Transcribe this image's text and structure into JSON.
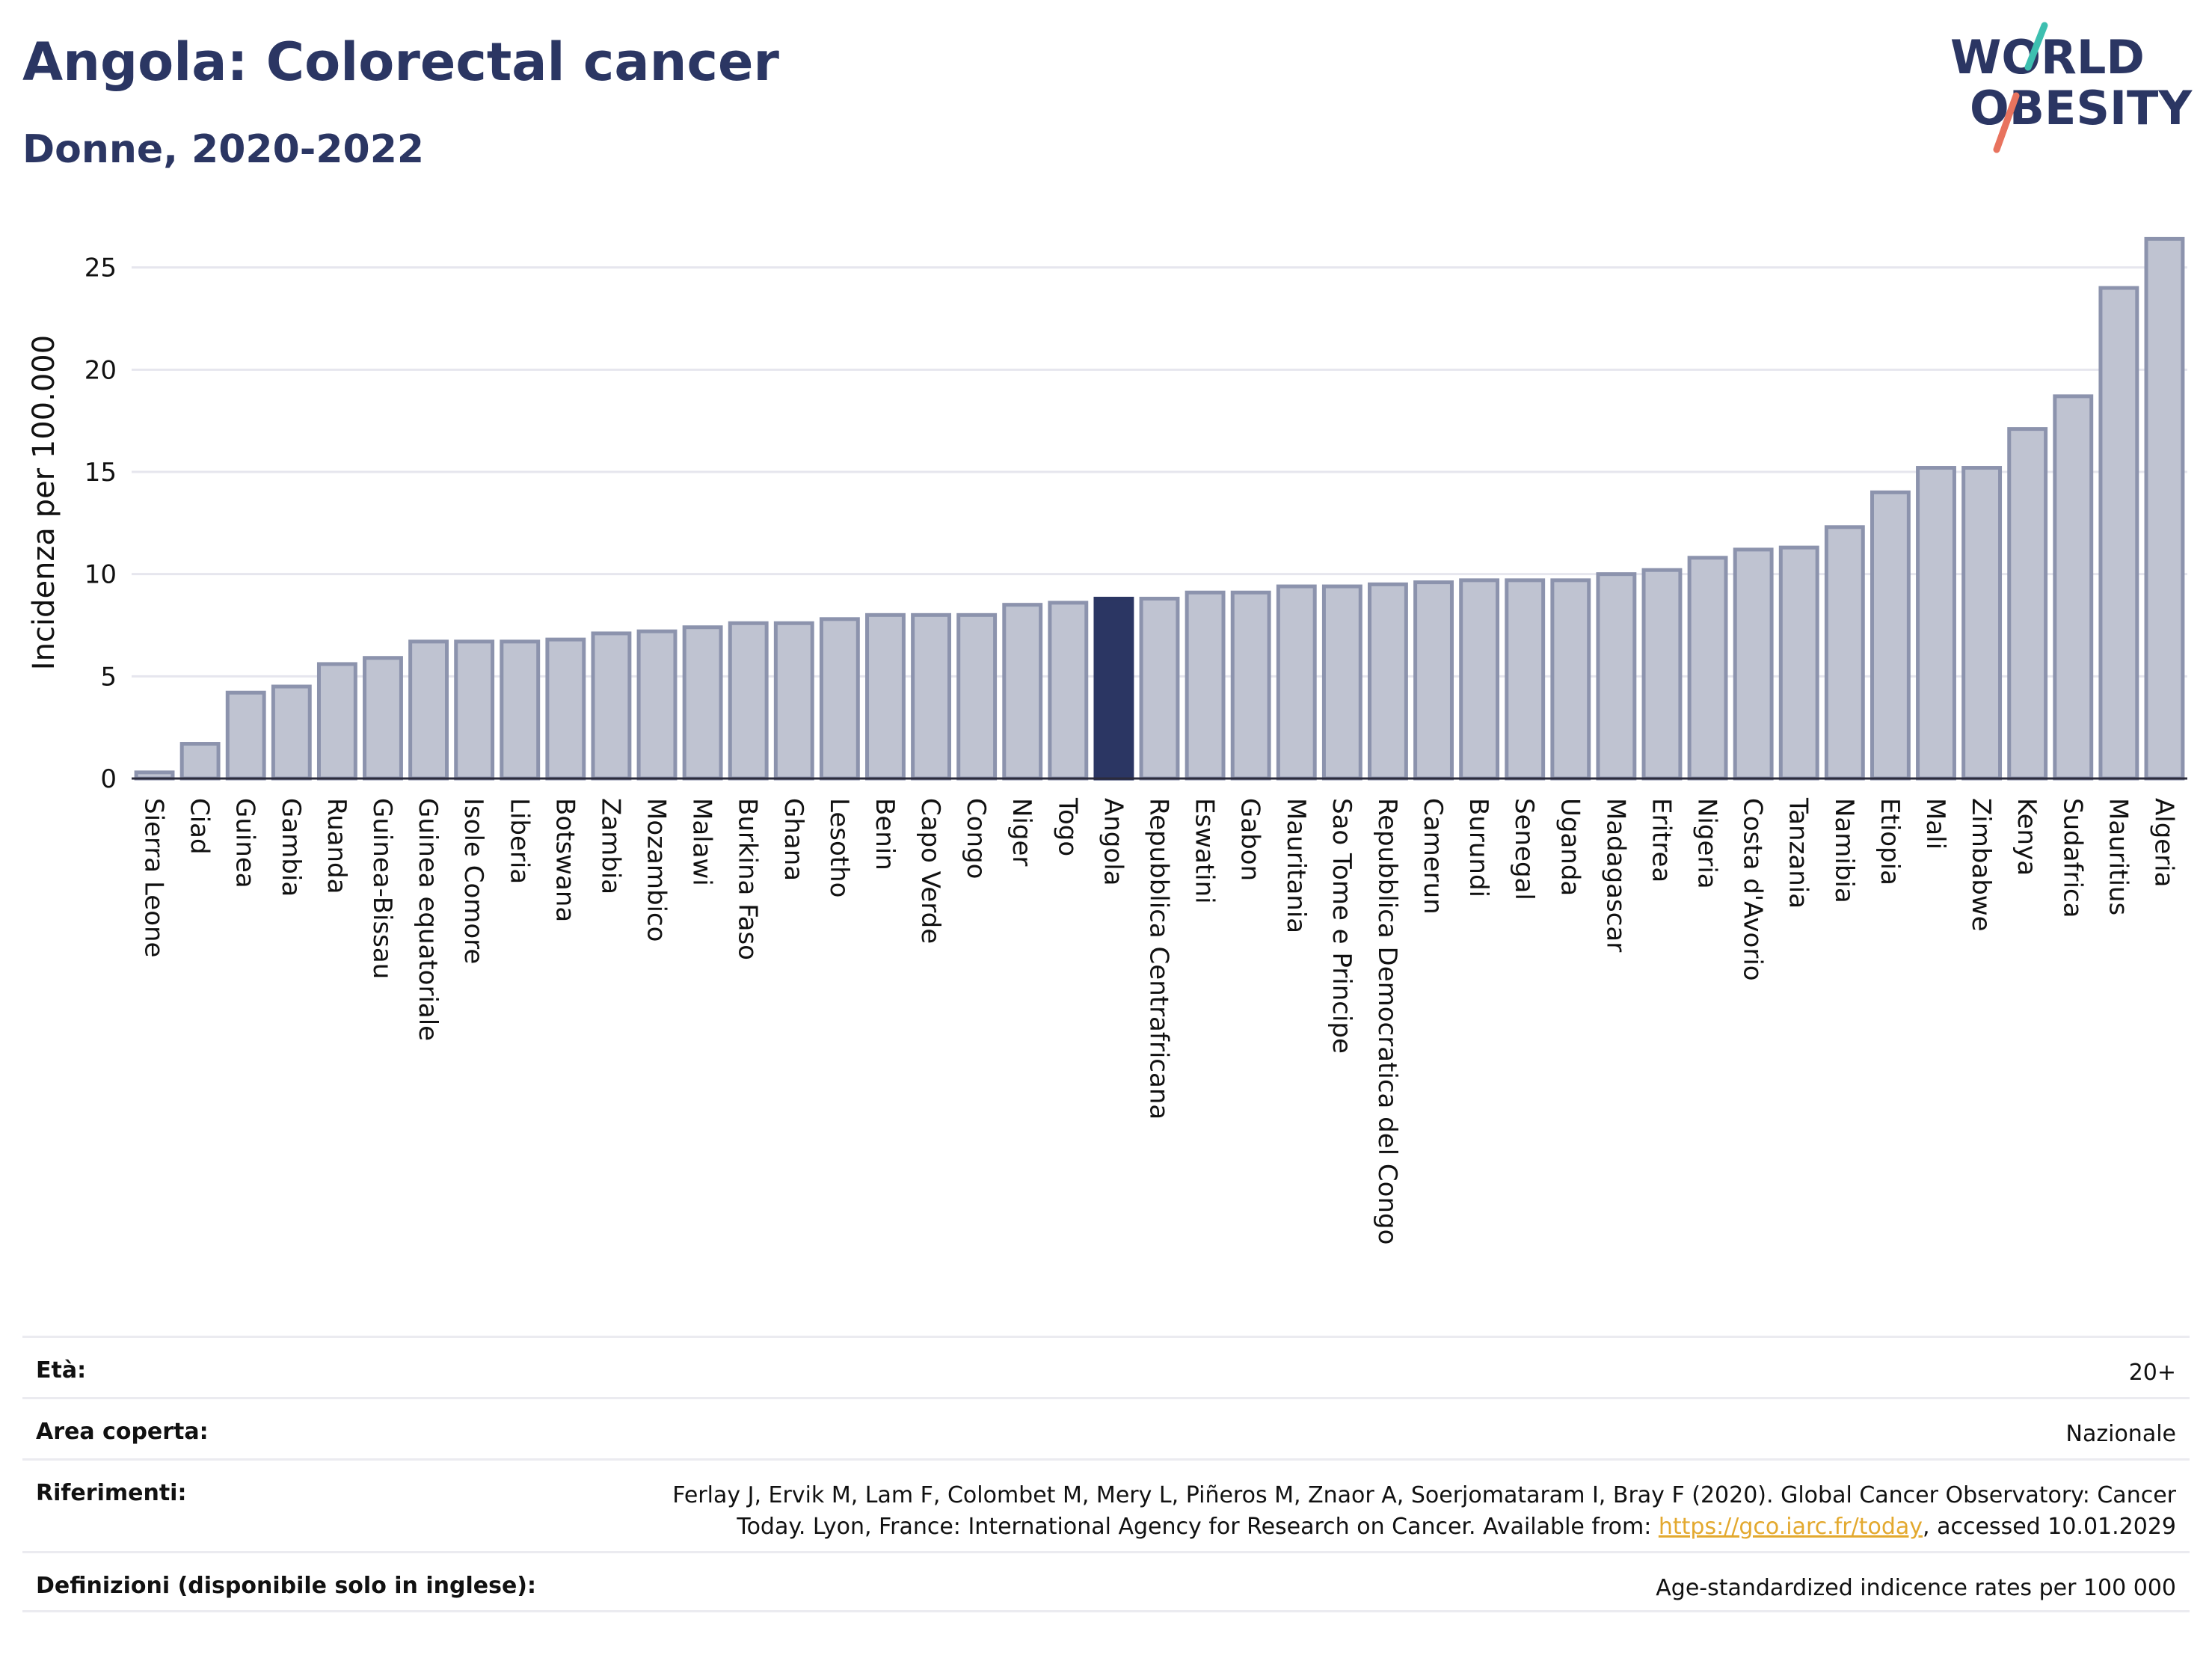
{
  "header": {
    "title": "Angola: Colorectal cancer",
    "subtitle": "Donne, 2020-2022"
  },
  "logo": {
    "line1": "WORLD",
    "line2": "OBESITY"
  },
  "colors": {
    "bar_fill": "#bfc3d1",
    "bar_stroke": "#8c93ad",
    "highlight": "#2b3663",
    "grid": "#e6e6ee",
    "accent_teal": "#3dbfb0",
    "accent_coral": "#e8735e",
    "link": "#e3a92f"
  },
  "chart_data": {
    "type": "bar",
    "ylabel": "Incidenza per 100.000",
    "ylim": [
      0,
      27
    ],
    "yticks": [
      0,
      5,
      10,
      15,
      20,
      25
    ],
    "grid": true,
    "highlight": "Angola",
    "categories": [
      "Sierra Leone",
      "Ciad",
      "Guinea",
      "Gambia",
      "Ruanda",
      "Guinea-Bissau",
      "Guinea equatoriale",
      "Isole Comore",
      "Liberia",
      "Botswana",
      "Zambia",
      "Mozambico",
      "Malawi",
      "Burkina Faso",
      "Ghana",
      "Lesotho",
      "Benin",
      "Capo Verde",
      "Congo",
      "Niger",
      "Togo",
      "Angola",
      "Repubblica Centrafricana",
      "Eswatini",
      "Gabon",
      "Mauritania",
      "Sao Tome e Principe",
      "Repubblica Democratica del Congo",
      "Camerun",
      "Burundi",
      "Senegal",
      "Uganda",
      "Madagascar",
      "Eritrea",
      "Nigeria",
      "Costa d'Avorio",
      "Tanzania",
      "Namibia",
      "Etiopia",
      "Mali",
      "Zimbabwe",
      "Kenya",
      "Sudafrica",
      "Mauritius",
      "Algeria"
    ],
    "values": [
      0.3,
      1.7,
      4.2,
      4.5,
      5.6,
      5.9,
      6.7,
      6.7,
      6.7,
      6.8,
      7.1,
      7.2,
      7.4,
      7.6,
      7.6,
      7.8,
      8.0,
      8.0,
      8.0,
      8.5,
      8.6,
      8.8,
      8.8,
      9.1,
      9.1,
      9.4,
      9.4,
      9.5,
      9.6,
      9.7,
      9.7,
      9.7,
      10.0,
      10.2,
      10.8,
      11.2,
      11.3,
      12.3,
      14.0,
      15.2,
      15.2,
      17.1,
      18.7,
      24.0,
      26.4
    ]
  },
  "meta": {
    "age_label": "Età:",
    "age_value": "20+",
    "area_label": "Area coperta:",
    "area_value": "Nazionale",
    "ref_label": "Riferimenti:",
    "ref_text_1": "Ferlay J, Ervik M, Lam F, Colombet M, Mery L, Piñeros M, Znaor A, Soerjomataram I, Bray F (2020). Global Cancer Observatory: Cancer",
    "ref_text_2": "Today. Lyon, France: International Agency for Research on Cancer. Available from:",
    "ref_link": "https://gco.iarc.fr/today",
    "ref_text_3": ", accessed 10.01.2029",
    "def_label": "Definizioni (disponibile solo in inglese):",
    "def_value": "Age-standardized indicence rates per 100 000"
  }
}
